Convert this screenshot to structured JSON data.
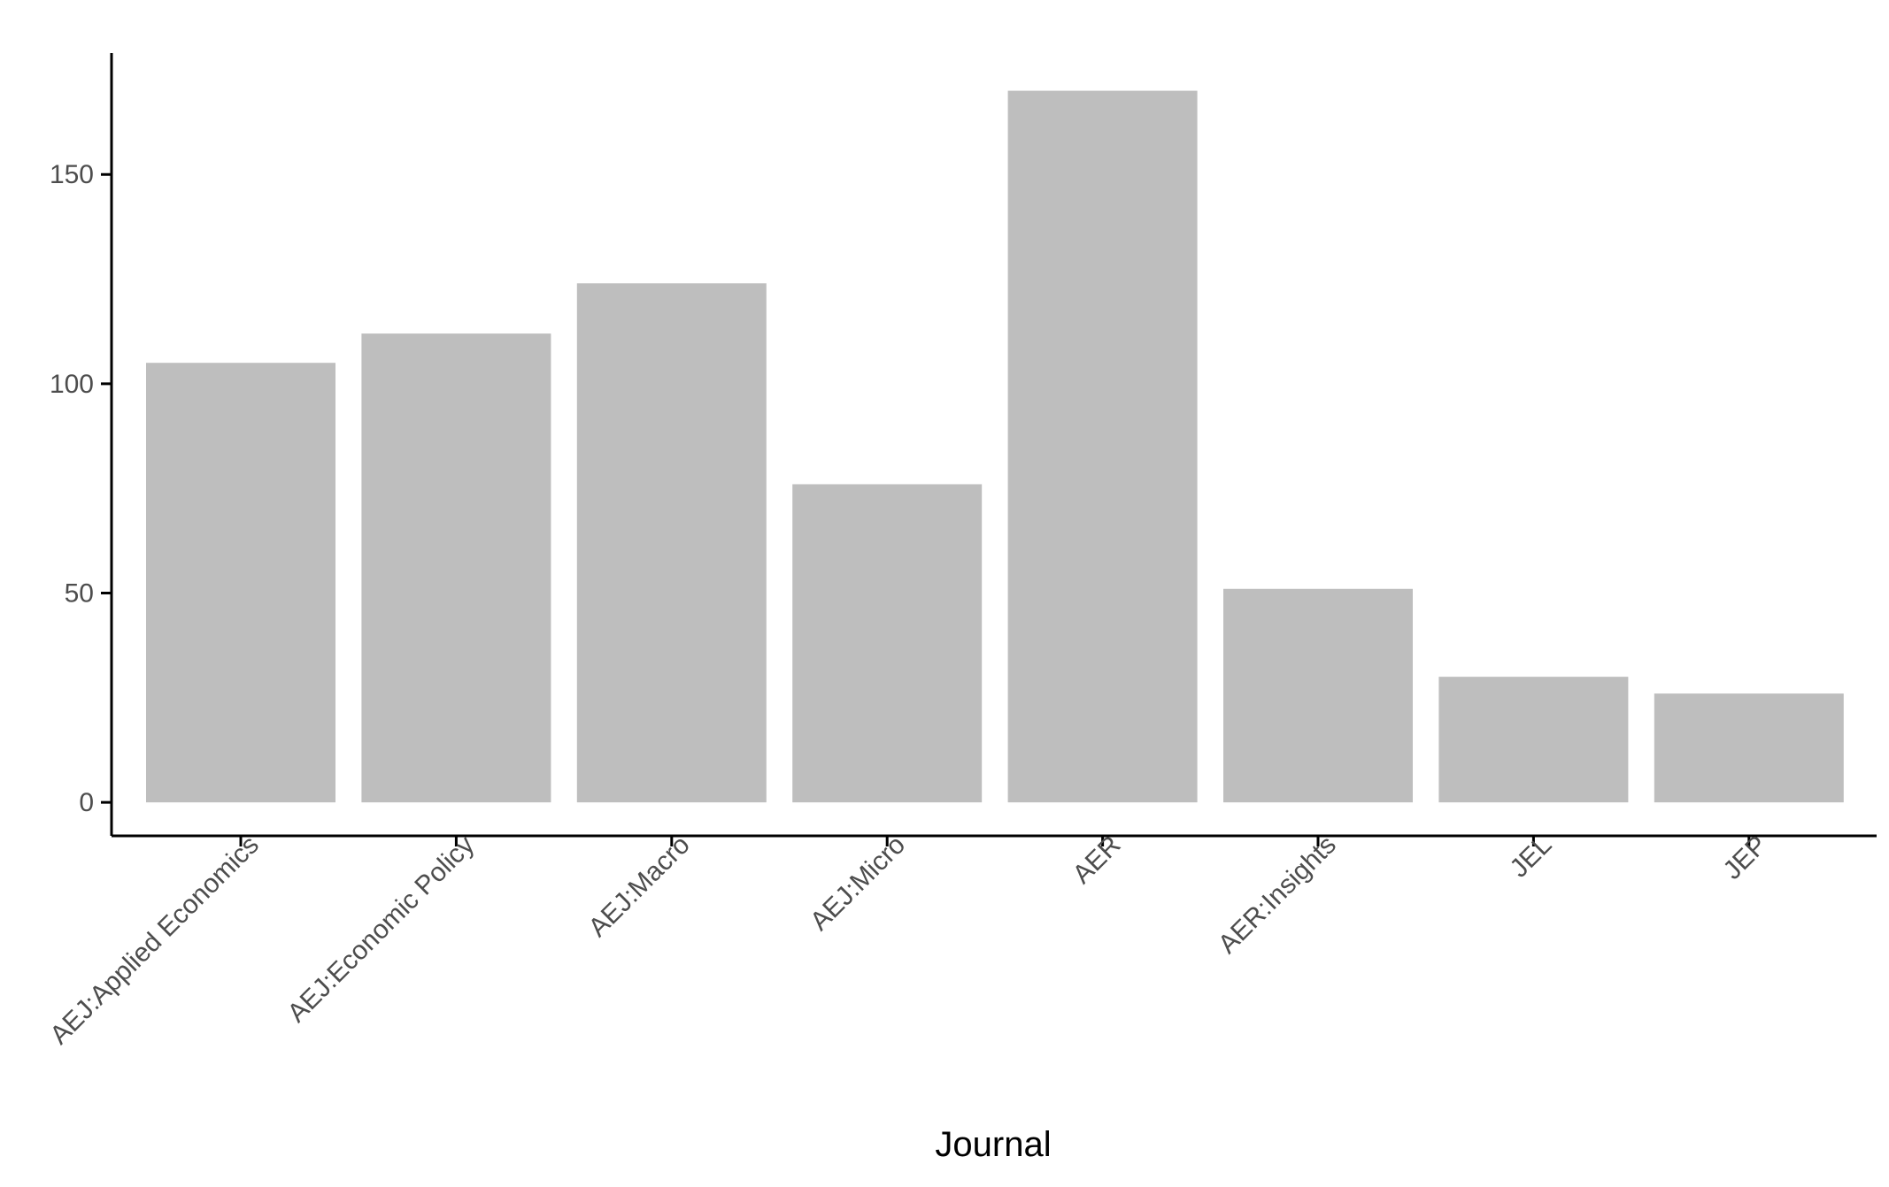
{
  "chart_data": {
    "type": "bar",
    "title": "",
    "xlabel": "Journal",
    "ylabel": "",
    "categories": [
      "AEJ:Applied Economics",
      "AEJ:Economic Policy",
      "AEJ:Macro",
      "AEJ:Micro",
      "AER",
      "AER:Insights",
      "JEL",
      "JEP"
    ],
    "values": [
      105,
      112,
      124,
      76,
      170,
      51,
      30,
      26
    ],
    "ylim": [
      -8,
      179
    ],
    "yticks": [
      0,
      50,
      100,
      150
    ],
    "ytick_labels": [
      "0",
      "50",
      "100",
      "150"
    ],
    "grid": false,
    "legend": "none",
    "bar_color": "#bebebe",
    "axis_color": "#000000",
    "tick_label_color": "#4d4d4d"
  }
}
